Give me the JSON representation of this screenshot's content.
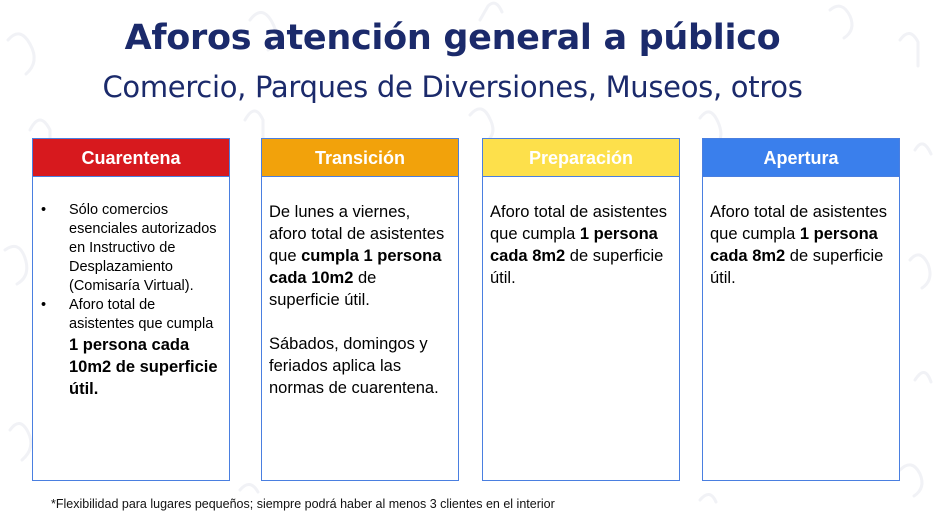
{
  "title": "Aforos atención general a público",
  "subtitle": "Comercio, Parques de Diversiones, Museos, otros",
  "cards": [
    {
      "header": "Cuarentena",
      "color": "#d7191e",
      "bullets": [
        {
          "text": "Sólo comercios esenciales autorizados en Instructivo de Desplazamiento (Comisaría Virtual)."
        },
        {
          "pre": "Aforo total de asistentes que cumpla ",
          "bold": "1 persona cada 10m2 de superficie útil."
        }
      ]
    },
    {
      "header": "Transición",
      "color": "#f2a20b",
      "pre": "De lunes a viernes, aforo total de asistentes que ",
      "bold": "cumpla 1 persona cada 10m2",
      "post": " de superficie útil.",
      "extra": "Sábados, domingos y feriados aplica las normas de cuarentena."
    },
    {
      "header": "Preparación",
      "color": "#fde04b",
      "pre": "Aforo total de asistentes que cumpla ",
      "bold": "1 persona cada 8m2",
      "post": " de superficie útil."
    },
    {
      "header": "Apertura",
      "color": "#3a7fec",
      "pre": "Aforo total de asistentes que cumpla ",
      "bold": "1 persona cada 8m2",
      "post": " de superficie útil."
    }
  ],
  "footnote": "*Flexibilidad para lugares pequeños; siempre podrá haber al menos 3 clientes en el interior"
}
